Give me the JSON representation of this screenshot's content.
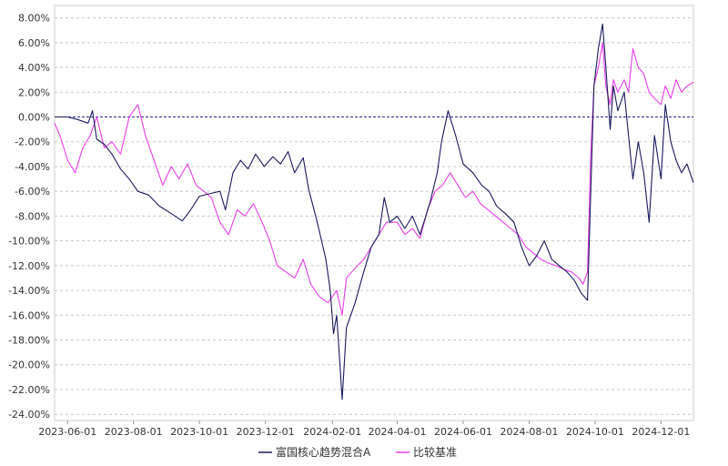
{
  "chart_data": {
    "type": "line",
    "title": "",
    "xlabel": "",
    "ylabel": "",
    "x_range": [
      "2023-05-20",
      "2024-12-31"
    ],
    "ylim": [
      -24.5,
      9
    ],
    "y_ticks": [
      8,
      6,
      4,
      2,
      0,
      -2,
      -4,
      -6,
      -8,
      -10,
      -12,
      -14,
      -16,
      -18,
      -20,
      -22,
      -24
    ],
    "y_tick_labels": [
      "8.00%",
      "6.00%",
      "4.00%",
      "2.00%",
      "0.00%",
      "-2.00%",
      "-4.00%",
      "-6.00%",
      "-8.00%",
      "-10.00%",
      "-12.00%",
      "-14.00%",
      "-16.00%",
      "-18.00%",
      "-20.00%",
      "-22.00%",
      "-24.00%"
    ],
    "x_ticks": [
      "2023-06-01",
      "2023-08-01",
      "2023-10-01",
      "2023-12-01",
      "2024-02-01",
      "2024-04-01",
      "2024-06-01",
      "2024-08-01",
      "2024-10-01",
      "2024-12-01"
    ],
    "grid": true,
    "zero_line": true,
    "legend_position": "bottom-center",
    "series": [
      {
        "name": "富国核心趋势混合A",
        "color": "#1a1a5e",
        "points": [
          [
            "2023-05-20",
            0.0
          ],
          [
            "2023-06-01",
            0.0
          ],
          [
            "2023-06-10",
            -0.2
          ],
          [
            "2023-06-20",
            -0.5
          ],
          [
            "2023-06-24",
            0.5
          ],
          [
            "2023-06-28",
            -1.8
          ],
          [
            "2023-07-05",
            -2.2
          ],
          [
            "2023-07-12",
            -3.0
          ],
          [
            "2023-07-20",
            -4.2
          ],
          [
            "2023-07-28",
            -5.0
          ],
          [
            "2023-08-05",
            -6.0
          ],
          [
            "2023-08-15",
            -6.3
          ],
          [
            "2023-08-25",
            -7.2
          ],
          [
            "2023-09-05",
            -7.8
          ],
          [
            "2023-09-15",
            -8.4
          ],
          [
            "2023-09-22",
            -7.6
          ],
          [
            "2023-10-01",
            -6.4
          ],
          [
            "2023-10-10",
            -6.2
          ],
          [
            "2023-10-20",
            -6.0
          ],
          [
            "2023-10-25",
            -7.5
          ],
          [
            "2023-11-01",
            -4.5
          ],
          [
            "2023-11-08",
            -3.5
          ],
          [
            "2023-11-15",
            -4.2
          ],
          [
            "2023-11-22",
            -3.0
          ],
          [
            "2023-11-30",
            -4.0
          ],
          [
            "2023-12-08",
            -3.2
          ],
          [
            "2023-12-15",
            -3.8
          ],
          [
            "2023-12-22",
            -2.8
          ],
          [
            "2023-12-28",
            -4.5
          ],
          [
            "2024-01-05",
            -3.3
          ],
          [
            "2024-01-10",
            -5.8
          ],
          [
            "2024-01-18",
            -8.5
          ],
          [
            "2024-01-22",
            -10.0
          ],
          [
            "2024-01-26",
            -11.5
          ],
          [
            "2024-01-30",
            -14.0
          ],
          [
            "2024-02-02",
            -17.5
          ],
          [
            "2024-02-05",
            -16.0
          ],
          [
            "2024-02-08",
            -20.0
          ],
          [
            "2024-02-10",
            -22.8
          ],
          [
            "2024-02-14",
            -17.0
          ],
          [
            "2024-02-22",
            -15.0
          ],
          [
            "2024-03-01",
            -12.5
          ],
          [
            "2024-03-08",
            -10.5
          ],
          [
            "2024-03-15",
            -9.5
          ],
          [
            "2024-03-20",
            -6.5
          ],
          [
            "2024-03-25",
            -8.5
          ],
          [
            "2024-04-01",
            -8.0
          ],
          [
            "2024-04-08",
            -9.0
          ],
          [
            "2024-04-15",
            -8.0
          ],
          [
            "2024-04-22",
            -9.5
          ],
          [
            "2024-05-01",
            -7.0
          ],
          [
            "2024-05-08",
            -4.5
          ],
          [
            "2024-05-12",
            -2.0
          ],
          [
            "2024-05-18",
            0.5
          ],
          [
            "2024-05-25",
            -1.5
          ],
          [
            "2024-06-01",
            -3.8
          ],
          [
            "2024-06-10",
            -4.5
          ],
          [
            "2024-06-18",
            -5.5
          ],
          [
            "2024-06-25",
            -6.0
          ],
          [
            "2024-07-02",
            -7.2
          ],
          [
            "2024-07-10",
            -7.8
          ],
          [
            "2024-07-18",
            -8.5
          ],
          [
            "2024-07-25",
            -10.5
          ],
          [
            "2024-08-01",
            -12.0
          ],
          [
            "2024-08-08",
            -11.2
          ],
          [
            "2024-08-15",
            -10.0
          ],
          [
            "2024-08-22",
            -11.5
          ],
          [
            "2024-08-29",
            -12.0
          ],
          [
            "2024-09-05",
            -12.5
          ],
          [
            "2024-09-12",
            -13.2
          ],
          [
            "2024-09-18",
            -14.2
          ],
          [
            "2024-09-24",
            -14.8
          ],
          [
            "2024-09-27",
            -6.0
          ],
          [
            "2024-09-30",
            2.5
          ],
          [
            "2024-10-04",
            5.5
          ],
          [
            "2024-10-08",
            7.5
          ],
          [
            "2024-10-11",
            4.0
          ],
          [
            "2024-10-15",
            -1.0
          ],
          [
            "2024-10-18",
            2.5
          ],
          [
            "2024-10-22",
            0.5
          ],
          [
            "2024-10-28",
            2.0
          ],
          [
            "2024-11-01",
            -1.5
          ],
          [
            "2024-11-05",
            -5.0
          ],
          [
            "2024-11-10",
            -2.0
          ],
          [
            "2024-11-15",
            -4.5
          ],
          [
            "2024-11-20",
            -8.5
          ],
          [
            "2024-11-25",
            -1.5
          ],
          [
            "2024-12-01",
            -5.0
          ],
          [
            "2024-12-05",
            1.0
          ],
          [
            "2024-12-10",
            -2.0
          ],
          [
            "2024-12-15",
            -3.5
          ],
          [
            "2024-12-20",
            -4.5
          ],
          [
            "2024-12-25",
            -3.8
          ],
          [
            "2024-12-31",
            -5.3
          ]
        ]
      },
      {
        "name": "比较基准",
        "color": "#e83ee8",
        "points": [
          [
            "2023-05-20",
            -0.5
          ],
          [
            "2023-05-25",
            -1.5
          ],
          [
            "2023-06-01",
            -3.5
          ],
          [
            "2023-06-08",
            -4.5
          ],
          [
            "2023-06-15",
            -2.5
          ],
          [
            "2023-06-22",
            -1.5
          ],
          [
            "2023-06-28",
            0.0
          ],
          [
            "2023-07-05",
            -2.5
          ],
          [
            "2023-07-12",
            -2.0
          ],
          [
            "2023-07-20",
            -3.0
          ],
          [
            "2023-07-28",
            0.0
          ],
          [
            "2023-08-05",
            1.0
          ],
          [
            "2023-08-12",
            -1.5
          ],
          [
            "2023-08-20",
            -3.5
          ],
          [
            "2023-08-28",
            -5.5
          ],
          [
            "2023-09-05",
            -4.0
          ],
          [
            "2023-09-12",
            -5.0
          ],
          [
            "2023-09-20",
            -3.8
          ],
          [
            "2023-09-28",
            -5.5
          ],
          [
            "2023-10-05",
            -6.0
          ],
          [
            "2023-10-12",
            -6.5
          ],
          [
            "2023-10-20",
            -8.5
          ],
          [
            "2023-10-28",
            -9.5
          ],
          [
            "2023-11-05",
            -7.5
          ],
          [
            "2023-11-12",
            -8.0
          ],
          [
            "2023-11-20",
            -7.0
          ],
          [
            "2023-11-28",
            -8.5
          ],
          [
            "2023-12-05",
            -10.0
          ],
          [
            "2023-12-12",
            -12.0
          ],
          [
            "2023-12-20",
            -12.5
          ],
          [
            "2023-12-28",
            -13.0
          ],
          [
            "2024-01-05",
            -11.5
          ],
          [
            "2024-01-12",
            -13.5
          ],
          [
            "2024-01-20",
            -14.5
          ],
          [
            "2024-01-28",
            -15.0
          ],
          [
            "2024-02-05",
            -14.0
          ],
          [
            "2024-02-10",
            -16.0
          ],
          [
            "2024-02-14",
            -13.0
          ],
          [
            "2024-02-22",
            -12.2
          ],
          [
            "2024-03-01",
            -11.5
          ],
          [
            "2024-03-08",
            -10.5
          ],
          [
            "2024-03-15",
            -9.5
          ],
          [
            "2024-03-22",
            -8.5
          ],
          [
            "2024-04-01",
            -8.5
          ],
          [
            "2024-04-08",
            -9.5
          ],
          [
            "2024-04-15",
            -9.0
          ],
          [
            "2024-04-22",
            -9.8
          ],
          [
            "2024-04-29",
            -7.5
          ],
          [
            "2024-05-06",
            -6.0
          ],
          [
            "2024-05-13",
            -5.5
          ],
          [
            "2024-05-20",
            -4.5
          ],
          [
            "2024-05-27",
            -5.5
          ],
          [
            "2024-06-03",
            -6.5
          ],
          [
            "2024-06-10",
            -6.0
          ],
          [
            "2024-06-17",
            -7.0
          ],
          [
            "2024-06-24",
            -7.5
          ],
          [
            "2024-07-01",
            -8.0
          ],
          [
            "2024-07-08",
            -8.5
          ],
          [
            "2024-07-15",
            -9.0
          ],
          [
            "2024-07-22",
            -9.5
          ],
          [
            "2024-07-29",
            -10.5
          ],
          [
            "2024-08-05",
            -11.0
          ],
          [
            "2024-08-12",
            -11.5
          ],
          [
            "2024-08-19",
            -11.8
          ],
          [
            "2024-08-26",
            -12.0
          ],
          [
            "2024-09-02",
            -12.3
          ],
          [
            "2024-09-09",
            -12.5
          ],
          [
            "2024-09-16",
            -13.0
          ],
          [
            "2024-09-20",
            -13.5
          ],
          [
            "2024-09-24",
            -12.5
          ],
          [
            "2024-09-27",
            -3.0
          ],
          [
            "2024-09-30",
            2.5
          ],
          [
            "2024-10-04",
            4.0
          ],
          [
            "2024-10-08",
            6.0
          ],
          [
            "2024-10-11",
            2.5
          ],
          [
            "2024-10-15",
            1.0
          ],
          [
            "2024-10-18",
            3.0
          ],
          [
            "2024-10-22",
            2.0
          ],
          [
            "2024-10-28",
            3.0
          ],
          [
            "2024-11-01",
            2.0
          ],
          [
            "2024-11-05",
            5.5
          ],
          [
            "2024-11-10",
            4.0
          ],
          [
            "2024-11-15",
            3.5
          ],
          [
            "2024-11-20",
            2.0
          ],
          [
            "2024-11-25",
            1.5
          ],
          [
            "2024-12-01",
            1.0
          ],
          [
            "2024-12-05",
            2.5
          ],
          [
            "2024-12-10",
            1.5
          ],
          [
            "2024-12-15",
            3.0
          ],
          [
            "2024-12-20",
            2.0
          ],
          [
            "2024-12-25",
            2.5
          ],
          [
            "2024-12-31",
            2.8
          ]
        ]
      }
    ]
  }
}
